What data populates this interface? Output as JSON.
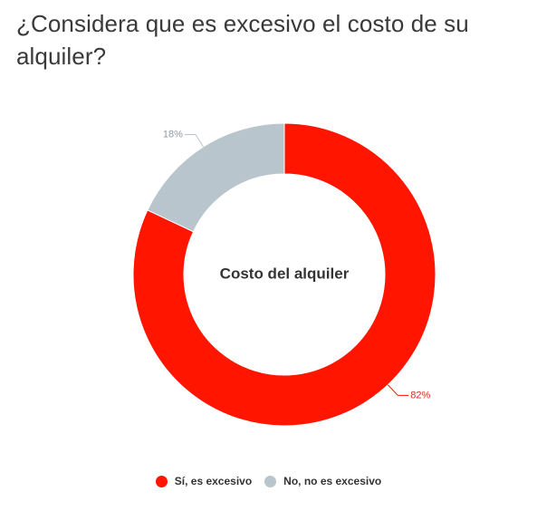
{
  "title": "¿Considera que es excesivo el costo de su alquiler?",
  "chart_data": {
    "type": "pie",
    "subtype": "donut",
    "center_label": "Costo del alquiler",
    "slices": [
      {
        "name": "Sí, es excesivo",
        "value": 82,
        "label": "82%",
        "color": "#ff1500"
      },
      {
        "name": "No, no es excesivo",
        "value": 18,
        "label": "18%",
        "color": "#b8c5cc"
      }
    ],
    "legend_position": "bottom"
  }
}
